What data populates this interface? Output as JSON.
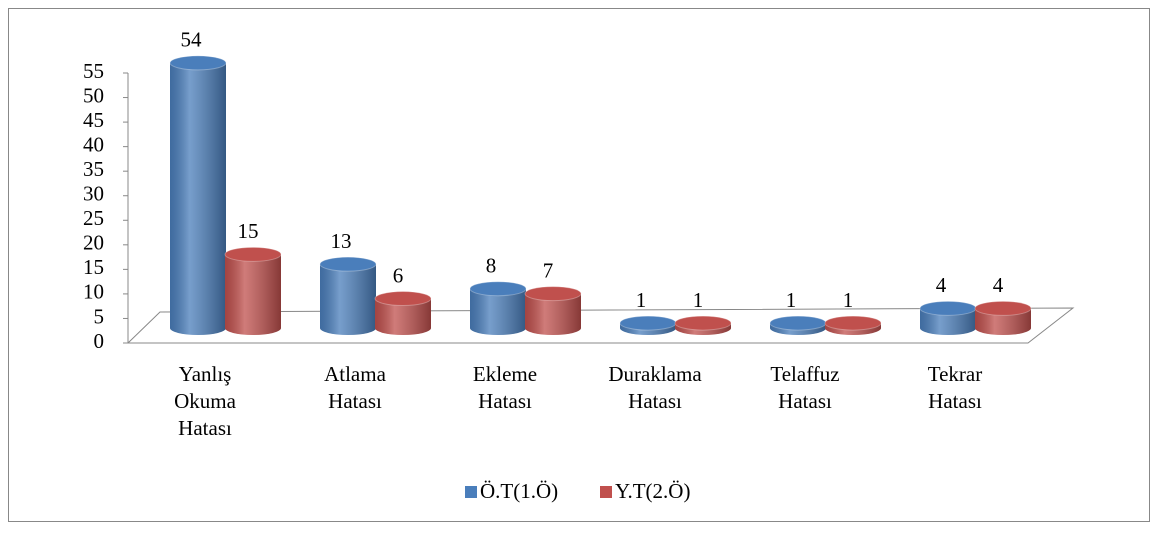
{
  "chart_data": {
    "type": "bar3d",
    "categories": [
      "Yanlış Okuma Hatası",
      "Atlama Hatası",
      "Ekleme Hatası",
      "Duraklama Hatası",
      "Telaffuz Hatası",
      "Tekrar Hatası"
    ],
    "series": [
      {
        "name": "Ö.T(1.Ö)",
        "color": "#4a7ebb",
        "values": [
          54,
          13,
          8,
          1,
          1,
          4
        ]
      },
      {
        "name": "Y.T(2.Ö)",
        "color": "#c0504d",
        "values": [
          15,
          6,
          7,
          1,
          1,
          4
        ]
      }
    ],
    "ylim": [
      0,
      55
    ],
    "yticks": [
      0,
      5,
      10,
      15,
      20,
      25,
      30,
      35,
      40,
      45,
      50,
      55
    ],
    "grid": false,
    "legend": "bottom"
  }
}
